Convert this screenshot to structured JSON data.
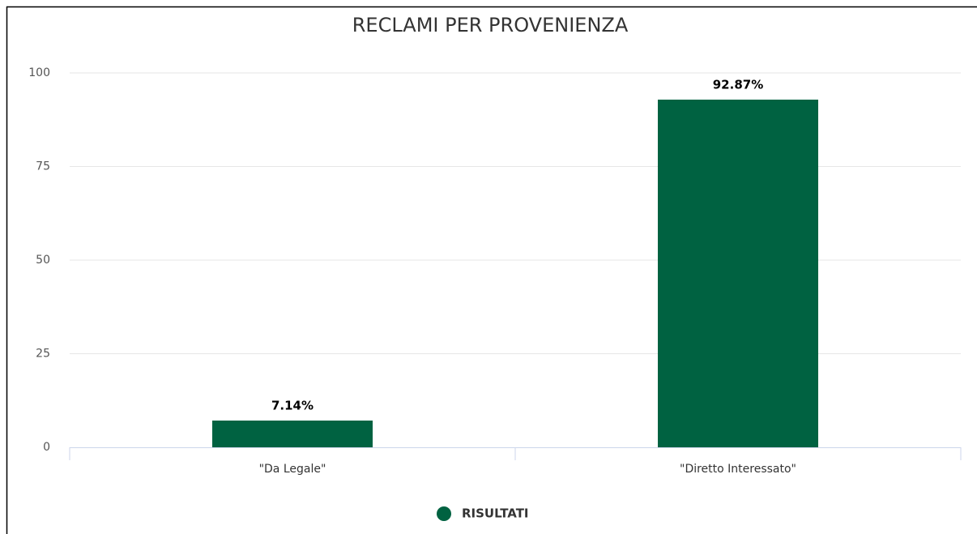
{
  "chart_data": {
    "type": "bar",
    "title": "RECLAMI PER PROVENIENZA",
    "categories": [
      "\"Da Legale\"",
      "\"Diretto Interessato\""
    ],
    "series": [
      {
        "name": "RISULTATI",
        "color": "#006241",
        "values": [
          7.14,
          92.87
        ],
        "value_labels": [
          "7.14%",
          "92.87%"
        ]
      }
    ],
    "ylim": [
      0,
      100
    ],
    "yticks": [
      0,
      25,
      50,
      75,
      100
    ],
    "grid": true,
    "legend": "bottom"
  }
}
